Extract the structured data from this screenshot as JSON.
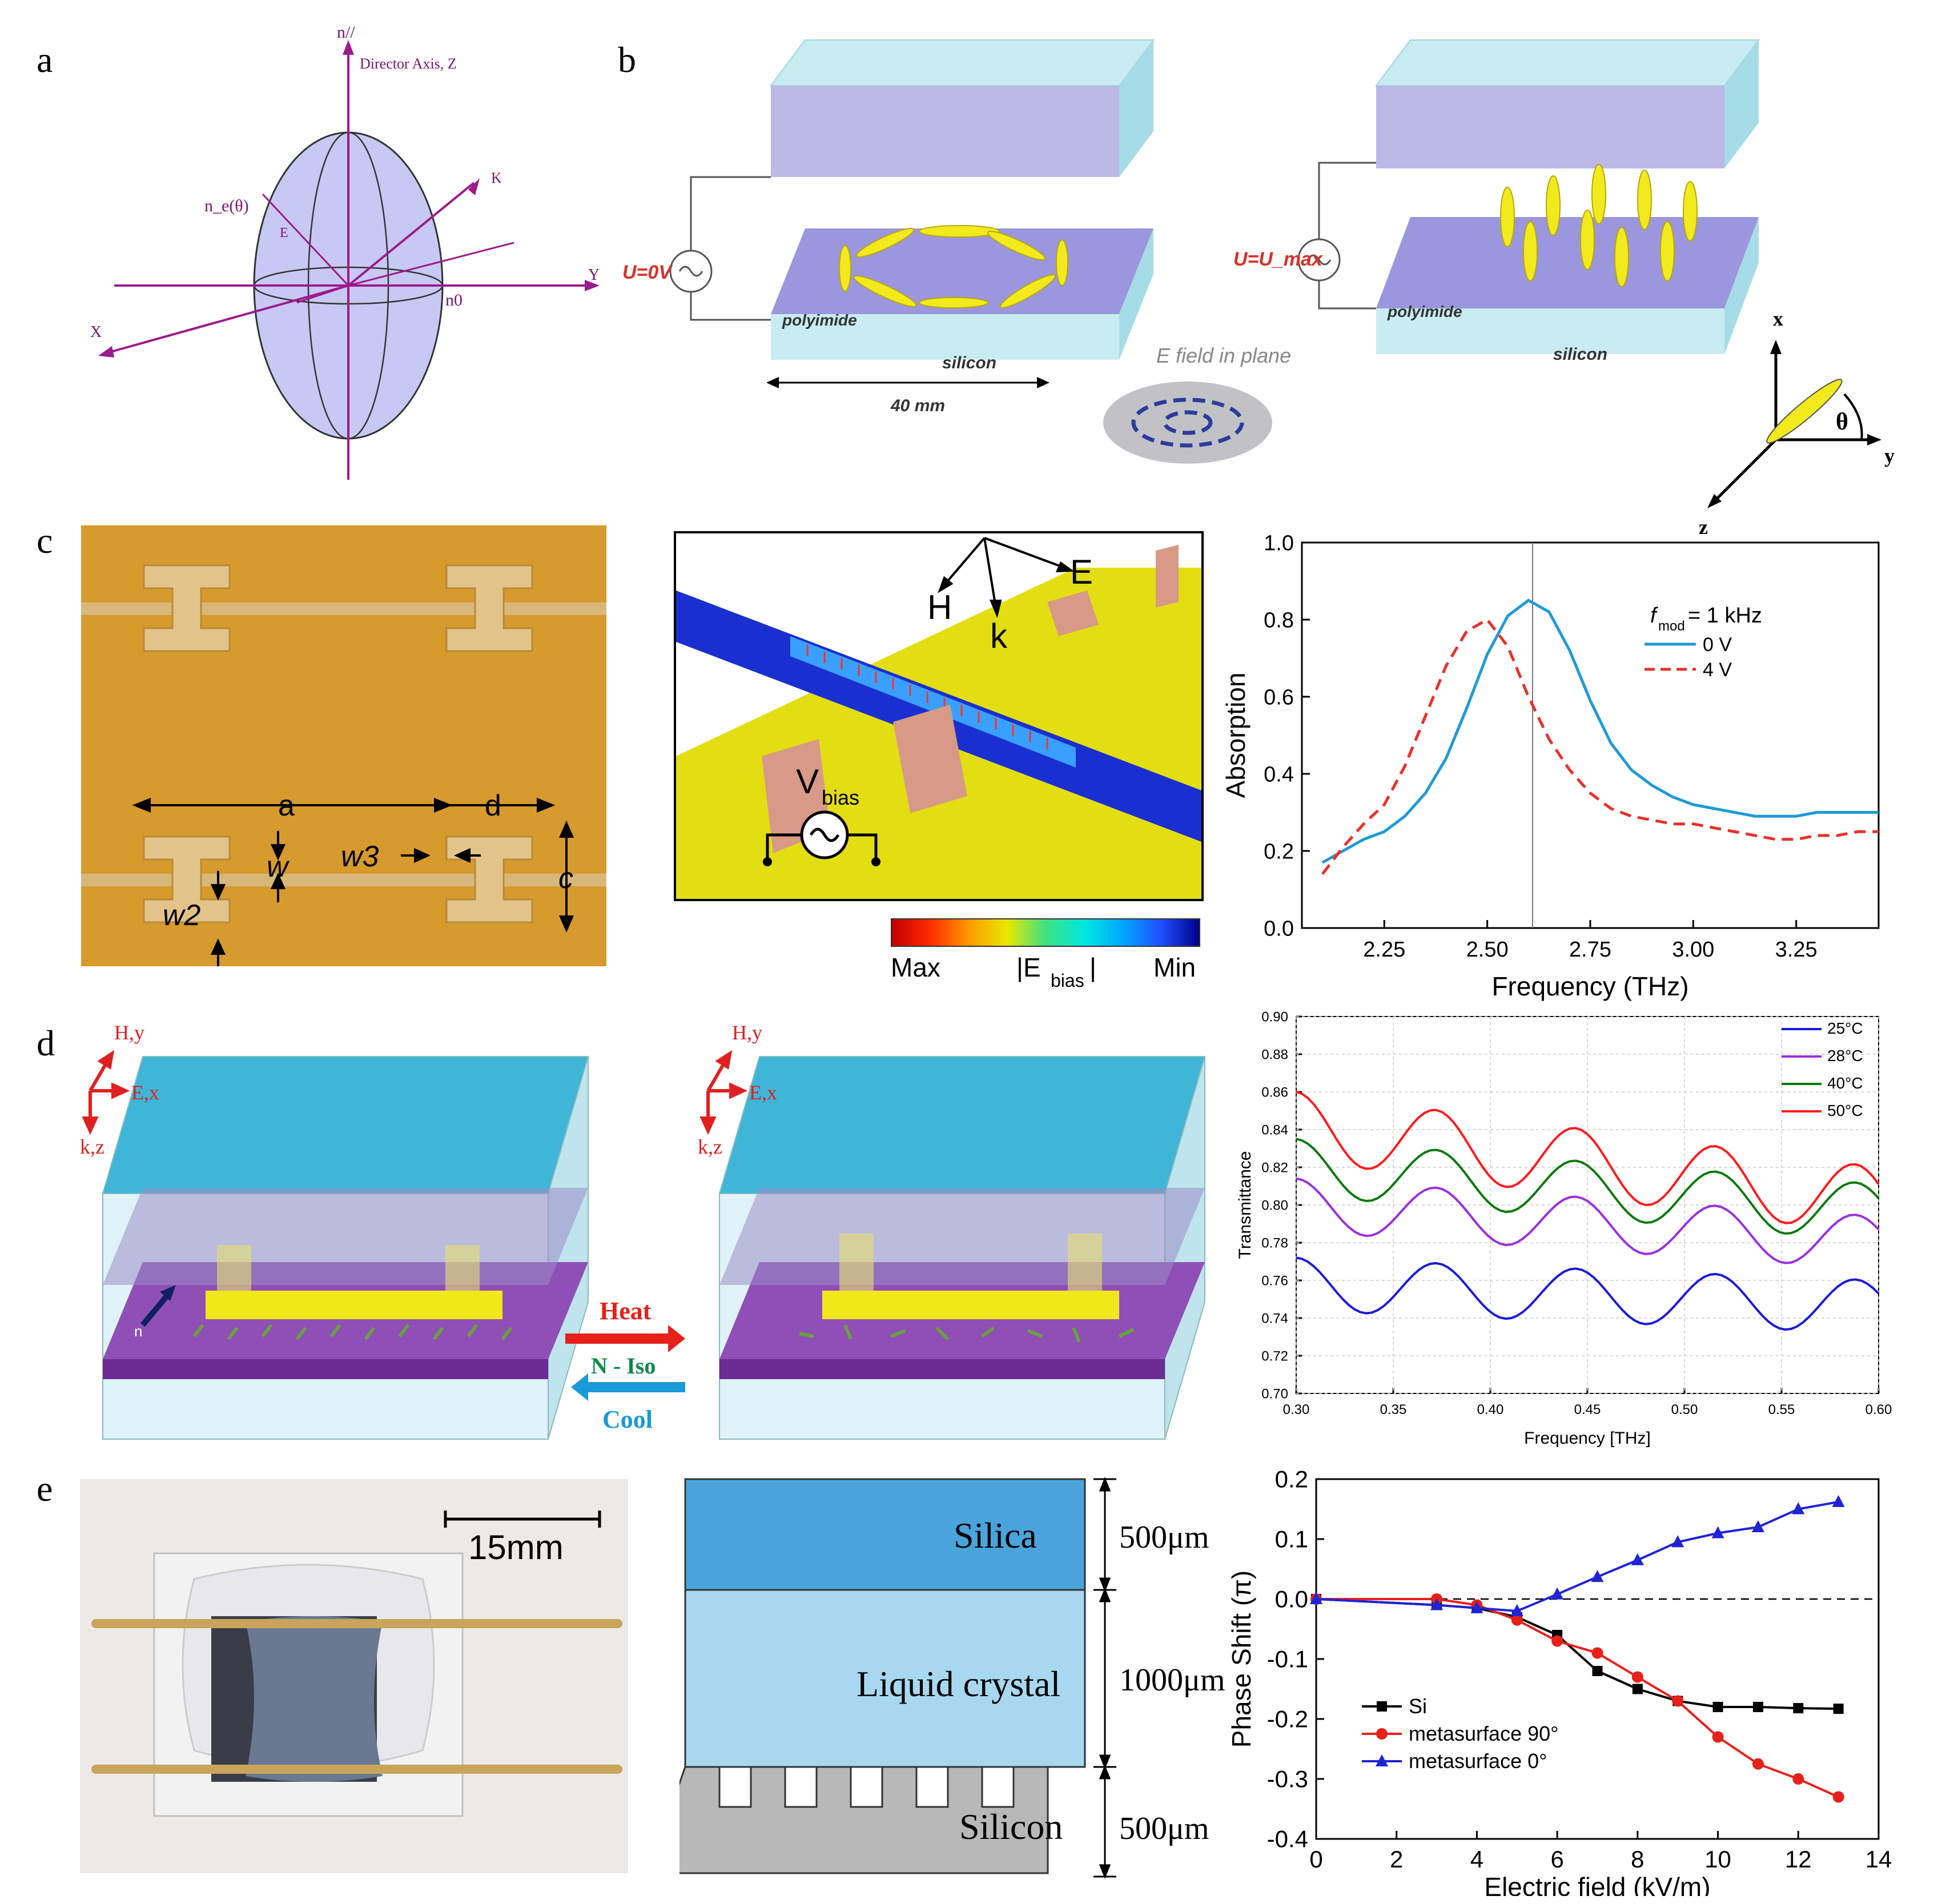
{
  "panel_labels": [
    "a",
    "b",
    "c",
    "d",
    "e"
  ],
  "panel_a": {
    "n_parallel": "n//",
    "director": "Director Axis, Z",
    "k": "K",
    "ne_theta": "n_e(θ)",
    "e": "E",
    "y": "Y",
    "x": "X",
    "n0": "n0",
    "colors": {
      "ellipsoid": "#c8c8f4",
      "axes": "#9c1a8c"
    }
  },
  "panel_b": {
    "u0": "U=0V",
    "umax": "U=U_max",
    "polyimide": "polyimide",
    "silicon": "silicon",
    "width": "40 mm",
    "efield": "E field in plane",
    "axis_x": "x",
    "axis_y": "y",
    "axis_z": "z",
    "theta": "θ"
  },
  "panel_c": {
    "photo_labels": [
      "a",
      "d",
      "w",
      "w3",
      "c",
      "w2"
    ],
    "sim_labels": {
      "H": "H",
      "E": "E",
      "k": "k",
      "vbias": "V",
      "vbias_sub": "bias"
    },
    "colorbar": {
      "max": "Max",
      "label": "|E",
      "label_sub": "bias",
      "label_end": "|",
      "min": "Min"
    },
    "legend_title": "f",
    "legend_title_sub": "mod",
    "legend_title_rest": "= 1 kHz"
  },
  "panel_d": {
    "axes_labels": [
      "H,y",
      "E,x",
      "k,z"
    ],
    "n": "n",
    "heat": "Heat",
    "niso": "N - Iso",
    "cool": "Cool"
  },
  "panel_e": {
    "scale": "15mm",
    "layers": [
      {
        "name": "Silica",
        "thickness": "500μm"
      },
      {
        "name": "Liquid crystal",
        "thickness": "1000μm"
      },
      {
        "name": "Silicon",
        "thickness": "500μm"
      }
    ]
  },
  "chart_data": [
    {
      "type": "line",
      "id": "absorption",
      "xlabel": "Frequency (THz)",
      "ylabel": "Absorption",
      "xlim": [
        2.05,
        3.45
      ],
      "ylim": [
        0.0,
        1.0
      ],
      "xticks": [
        "2.25",
        "2.50",
        "2.75",
        "3.00",
        "3.25"
      ],
      "yticks": [
        "0.0",
        "0.2",
        "0.4",
        "0.6",
        "0.8",
        "1.0"
      ],
      "vline": 2.61,
      "series": [
        {
          "name": "0 V",
          "color": "#1e9ad6",
          "dash": false,
          "x": [
            2.1,
            2.15,
            2.2,
            2.25,
            2.3,
            2.35,
            2.4,
            2.45,
            2.5,
            2.55,
            2.6,
            2.65,
            2.7,
            2.75,
            2.8,
            2.85,
            2.9,
            2.95,
            3.0,
            3.05,
            3.1,
            3.15,
            3.2,
            3.25,
            3.3,
            3.35,
            3.4,
            3.45
          ],
          "y": [
            0.17,
            0.2,
            0.23,
            0.25,
            0.29,
            0.35,
            0.44,
            0.57,
            0.71,
            0.81,
            0.85,
            0.82,
            0.72,
            0.59,
            0.48,
            0.41,
            0.37,
            0.34,
            0.32,
            0.31,
            0.3,
            0.29,
            0.29,
            0.29,
            0.3,
            0.3,
            0.3,
            0.3
          ]
        },
        {
          "name": "4 V",
          "color": "#e8312a",
          "dash": true,
          "x": [
            2.1,
            2.15,
            2.2,
            2.25,
            2.3,
            2.35,
            2.4,
            2.45,
            2.5,
            2.55,
            2.6,
            2.65,
            2.7,
            2.75,
            2.8,
            2.85,
            2.9,
            2.95,
            3.0,
            3.05,
            3.1,
            3.15,
            3.2,
            3.25,
            3.3,
            3.35,
            3.4,
            3.45
          ],
          "y": [
            0.14,
            0.21,
            0.27,
            0.32,
            0.42,
            0.55,
            0.68,
            0.77,
            0.8,
            0.73,
            0.6,
            0.49,
            0.41,
            0.35,
            0.31,
            0.29,
            0.28,
            0.27,
            0.27,
            0.26,
            0.25,
            0.24,
            0.23,
            0.23,
            0.24,
            0.24,
            0.25,
            0.25
          ]
        }
      ]
    },
    {
      "type": "line",
      "id": "transmittance",
      "xlabel": "Frequency [THz]",
      "ylabel": "Transmittance",
      "xlim": [
        0.3,
        0.6
      ],
      "ylim": [
        0.7,
        0.9
      ],
      "xticks": [
        "0.30",
        "0.35",
        "0.40",
        "0.45",
        "0.50",
        "0.55",
        "0.60"
      ],
      "yticks": [
        "0.70",
        "0.72",
        "0.74",
        "0.76",
        "0.78",
        "0.80",
        "0.82",
        "0.84",
        "0.86",
        "0.88",
        "0.90"
      ],
      "series": [
        {
          "name": "25°C",
          "color": "#1a1adb",
          "base": 0.758,
          "amp": 0.014,
          "drift": -0.012,
          "phase": 0.0
        },
        {
          "name": "28°C",
          "color": "#9b2ee0",
          "base": 0.8,
          "amp": 0.014,
          "drift": -0.02,
          "phase": 0.0
        },
        {
          "name": "40°C",
          "color": "#0a7a0a",
          "base": 0.82,
          "amp": 0.015,
          "drift": -0.024,
          "phase": 0.0
        },
        {
          "name": "50°C",
          "color": "#ff1a1a",
          "base": 0.842,
          "amp": 0.018,
          "drift": -0.04,
          "phase": 0.0
        }
      ]
    },
    {
      "type": "line",
      "id": "phase",
      "xlabel": "Electric field (kV/m)",
      "ylabel": "Phase Shift (π)",
      "xlim": [
        0,
        14
      ],
      "ylim": [
        -0.4,
        0.2
      ],
      "xticks": [
        "0",
        "2",
        "4",
        "6",
        "8",
        "10",
        "12",
        "14"
      ],
      "yticks": [
        "-0.4",
        "-0.3",
        "-0.2",
        "-0.1",
        "0.0",
        "0.1",
        "0.2"
      ],
      "series": [
        {
          "name": "Si",
          "color": "#000000",
          "marker": "square",
          "x": [
            0,
            3,
            4,
            5,
            6,
            7,
            8,
            9,
            10,
            11,
            12,
            13
          ],
          "y": [
            0.0,
            -0.01,
            -0.015,
            -0.03,
            -0.06,
            -0.12,
            -0.15,
            -0.17,
            -0.18,
            -0.18,
            -0.182,
            -0.183
          ]
        },
        {
          "name": "metasurface 90°",
          "color": "#e8201a",
          "marker": "circle",
          "x": [
            0,
            3,
            4,
            5,
            6,
            7,
            8,
            9,
            10,
            11,
            12,
            13
          ],
          "y": [
            0.0,
            0.0,
            -0.01,
            -0.035,
            -0.07,
            -0.09,
            -0.13,
            -0.17,
            -0.23,
            -0.275,
            -0.3,
            -0.33
          ]
        },
        {
          "name": "metasurface 0°",
          "color": "#1f24d6",
          "marker": "triangle",
          "x": [
            0,
            3,
            4,
            5,
            6,
            7,
            8,
            9,
            10,
            11,
            12,
            13
          ],
          "y": [
            0.0,
            -0.01,
            -0.015,
            -0.02,
            0.008,
            0.037,
            0.065,
            0.095,
            0.11,
            0.12,
            0.15,
            0.162
          ]
        }
      ]
    }
  ]
}
